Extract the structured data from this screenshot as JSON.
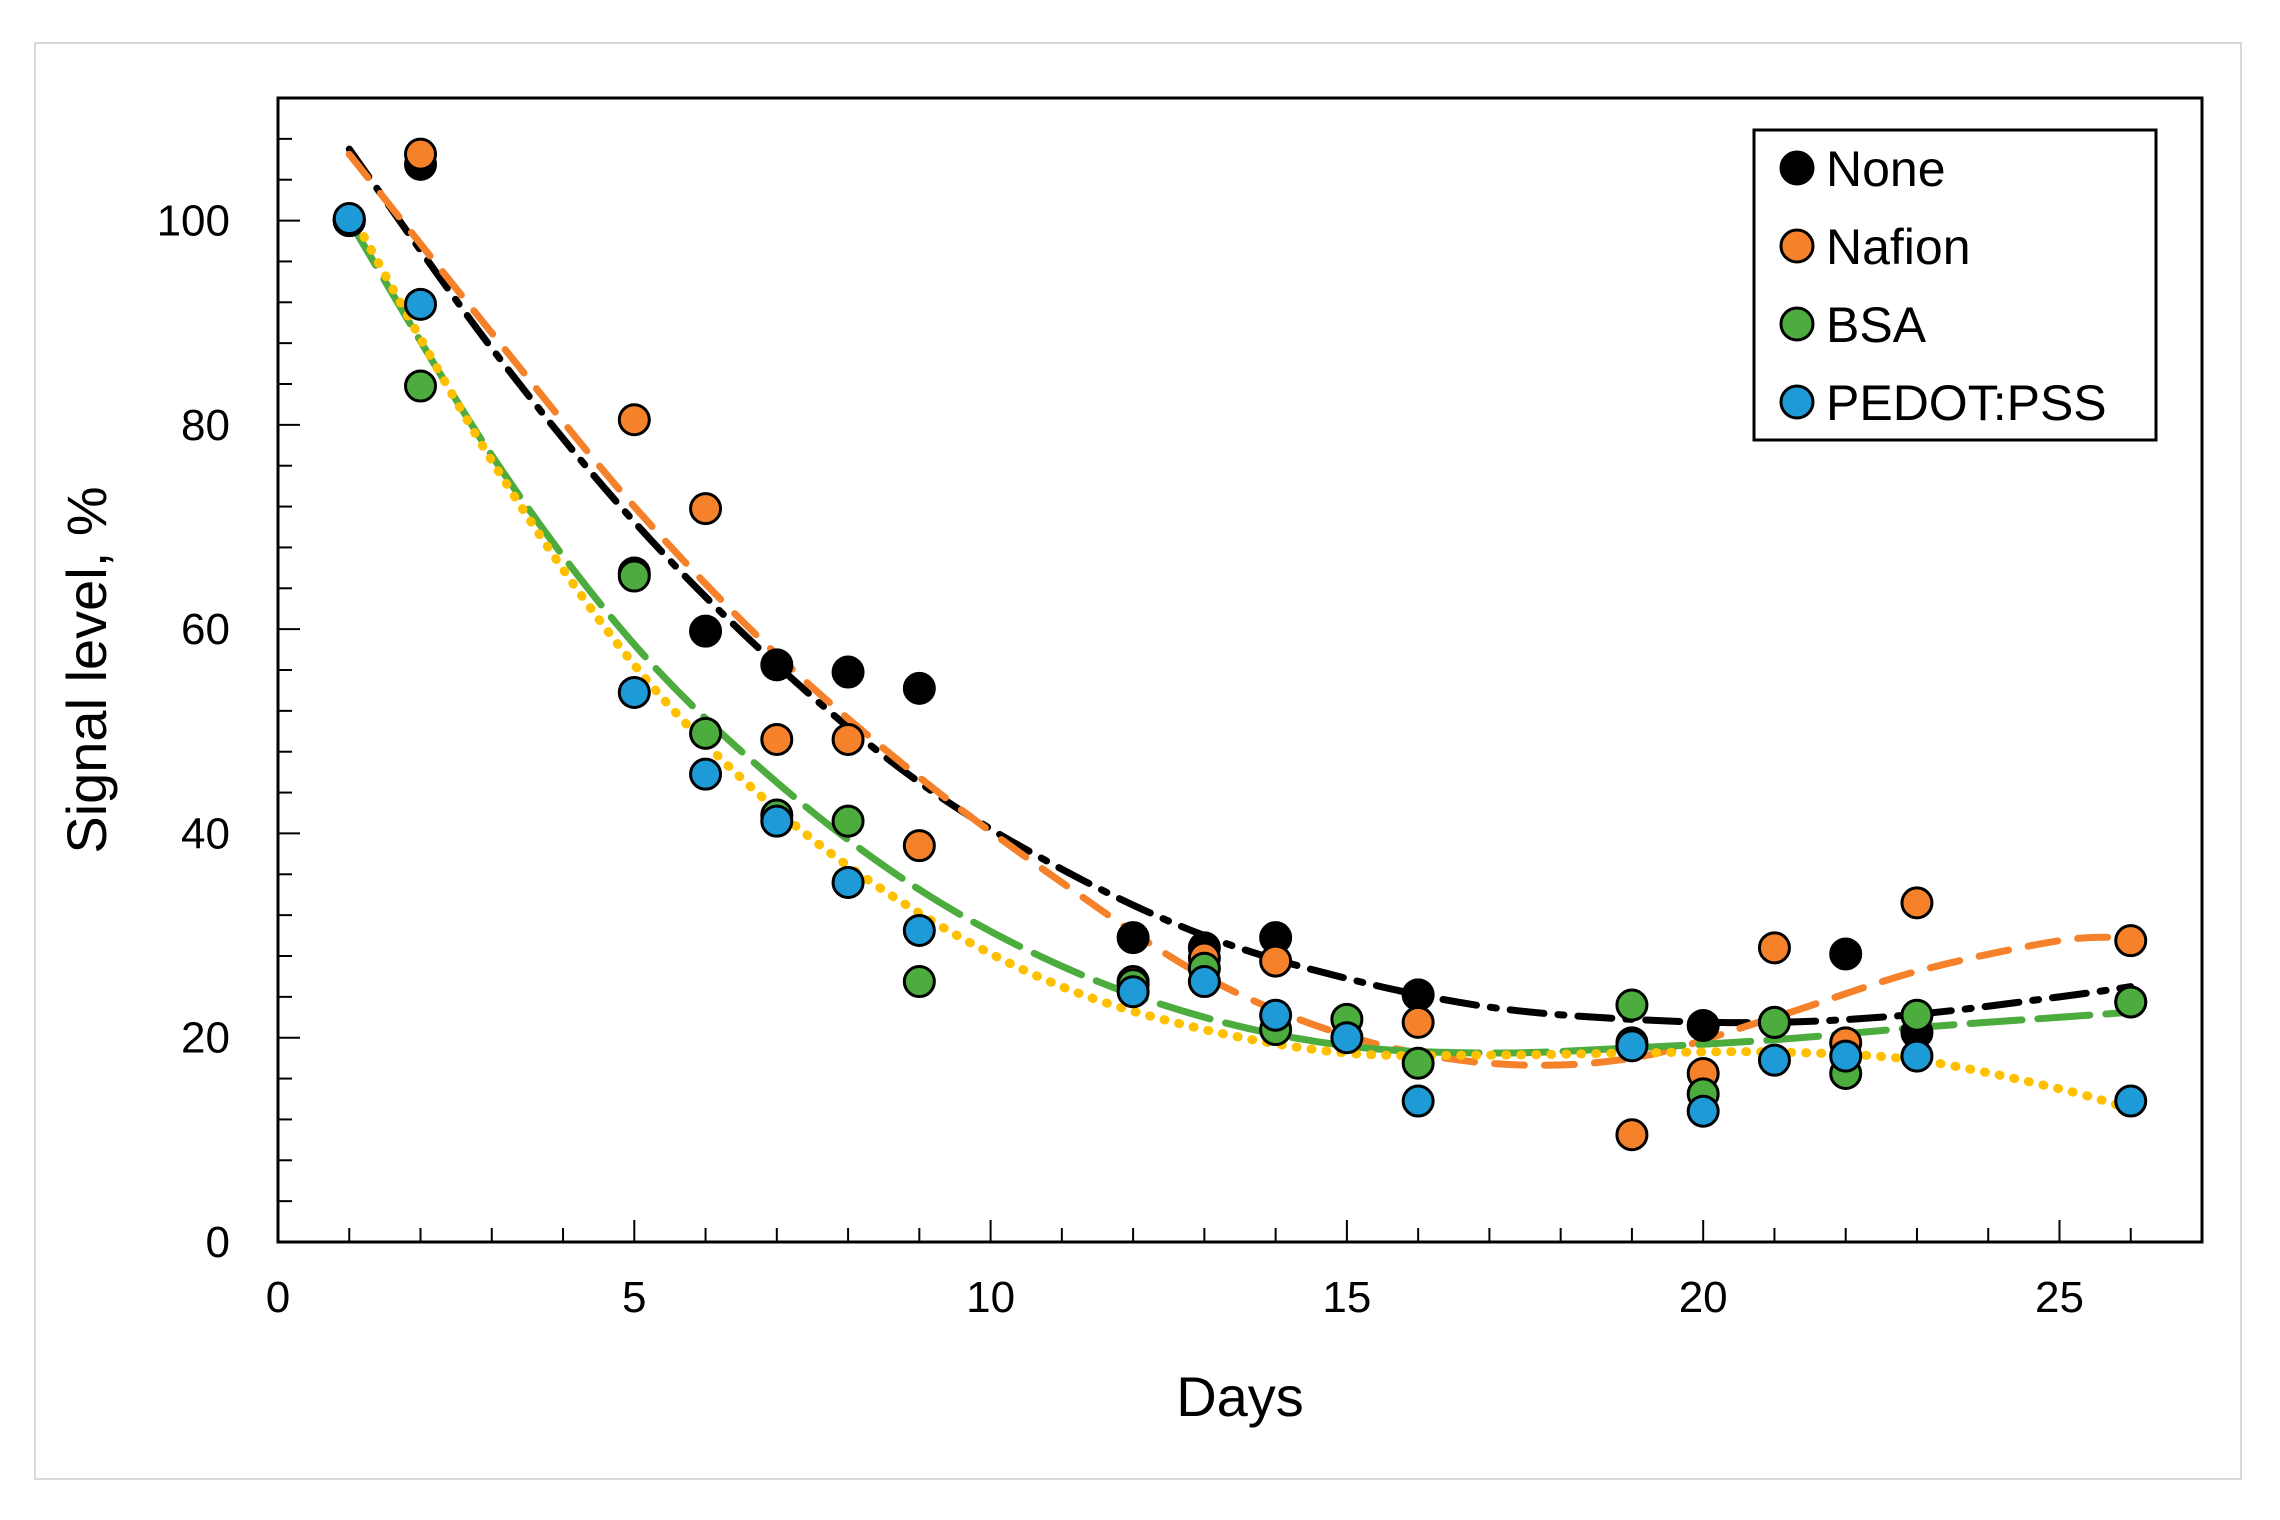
{
  "chart_data": {
    "type": "scatter",
    "title": "",
    "xlabel": "Days",
    "ylabel": "Signal level, %",
    "xlim": [
      0,
      27
    ],
    "ylim": [
      0,
      112
    ],
    "xticks": [
      0,
      5,
      10,
      15,
      20,
      25
    ],
    "yticks": [
      0,
      20,
      40,
      60,
      80,
      100
    ],
    "grid": false,
    "legend_position": "top-right",
    "series": [
      {
        "name": "None",
        "color": "#000000",
        "trend_style": "dash-dot",
        "x": [
          1,
          2,
          5,
          6,
          7,
          8,
          9,
          12,
          13,
          14,
          16,
          19,
          20,
          21,
          22,
          23,
          26
        ],
        "y": [
          100,
          105.5,
          65.5,
          59.8,
          56.5,
          55.8,
          54.2,
          29.8,
          28.8,
          29.8,
          24.2,
          19.5,
          21.2,
          21.5,
          28.2,
          20.5,
          23.5
        ],
        "trend_x": [
          1,
          3,
          5,
          7,
          9,
          11,
          13,
          15,
          17,
          19,
          21,
          23,
          25,
          26
        ],
        "trend_y": [
          107,
          87.5,
          70.5,
          56.5,
          45,
          36.5,
          30,
          25.8,
          23,
          21.8,
          21.5,
          22.3,
          24,
          25
        ]
      },
      {
        "name": "Nafion",
        "color": "#f5822a",
        "trend_style": "dashed",
        "x": [
          1,
          2,
          5,
          6,
          7,
          8,
          9,
          12,
          13,
          14,
          16,
          19,
          20,
          21,
          22,
          23,
          26
        ],
        "y": [
          100,
          106.5,
          80.5,
          71.8,
          49.2,
          49.2,
          38.8,
          25.5,
          27.8,
          27.5,
          21.5,
          10.5,
          16.5,
          28.8,
          19.5,
          33.2,
          29.5
        ],
        "trend_x": [
          1,
          3,
          5,
          7,
          9,
          11,
          13,
          15,
          17,
          19,
          21,
          23,
          25,
          26
        ],
        "trend_y": [
          106.5,
          89,
          72,
          57.5,
          45.5,
          35.2,
          26,
          20.2,
          17.5,
          18,
          22,
          26.5,
          29.5,
          29.8
        ]
      },
      {
        "name": "BSA",
        "color": "#4dac3e",
        "trend_style": "long-dash",
        "x": [
          1,
          2,
          5,
          6,
          7,
          8,
          9,
          12,
          13,
          14,
          15,
          16,
          19,
          20,
          21,
          22,
          23,
          26
        ],
        "y": [
          100,
          83.8,
          65.2,
          49.8,
          41.8,
          41.2,
          25.5,
          25.2,
          26.8,
          20.8,
          21.8,
          17.5,
          23.2,
          14.5,
          21.5,
          16.5,
          22.2,
          23.5
        ],
        "trend_x": [
          1,
          3,
          5,
          7,
          9,
          11,
          13,
          15,
          17,
          19,
          21,
          23,
          25,
          26
        ],
        "trend_y": [
          100,
          77,
          58.5,
          45,
          34.5,
          27,
          22,
          19.2,
          18.5,
          19,
          19.8,
          21,
          22,
          22.5
        ]
      },
      {
        "name": "PEDOT:PSS",
        "color": "#1e9ad6",
        "trend_color": "#ffc000",
        "trend_style": "dotted",
        "x": [
          1,
          2,
          5,
          6,
          7,
          8,
          9,
          12,
          13,
          14,
          15,
          16,
          19,
          20,
          21,
          22,
          23,
          26
        ],
        "y": [
          100.2,
          91.8,
          53.8,
          45.8,
          41.2,
          35.2,
          30.5,
          24.5,
          25.5,
          22.2,
          20,
          13.8,
          19.2,
          12.8,
          17.8,
          18.2,
          18.2,
          13.8
        ],
        "trend_x": [
          1,
          3,
          5,
          7,
          9,
          11,
          13,
          15,
          17,
          19,
          21,
          23,
          25,
          26
        ],
        "trend_y": [
          101,
          76.5,
          56.5,
          42.3,
          32.2,
          25,
          20.8,
          18.5,
          18.3,
          18.5,
          18.6,
          17.8,
          15,
          13
        ]
      }
    ]
  }
}
